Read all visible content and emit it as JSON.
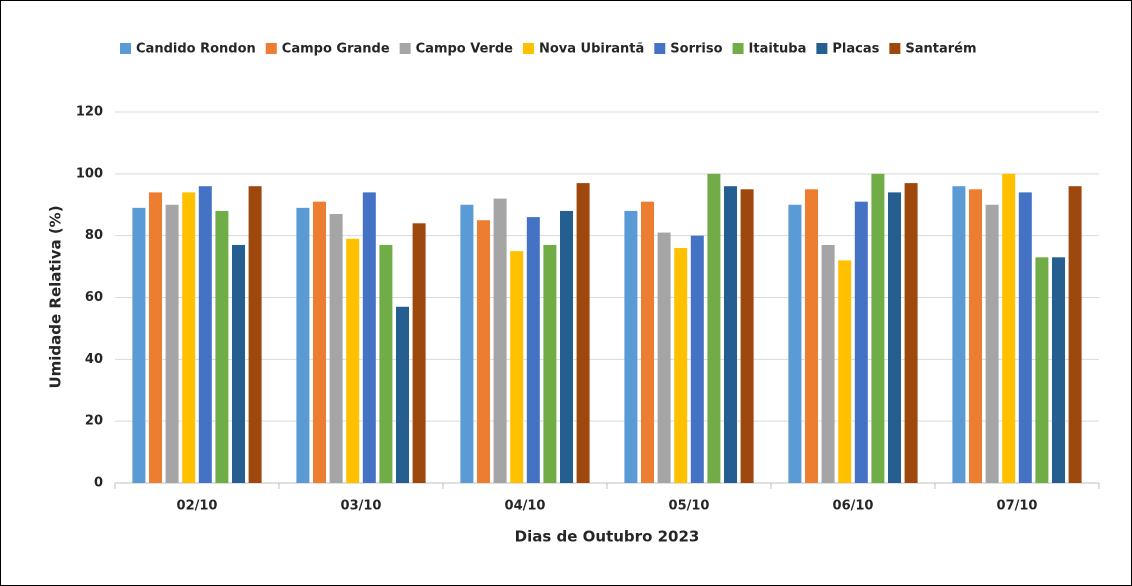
{
  "chart_data": {
    "type": "bar",
    "x_label": "Dias de Outubro 2023",
    "y_label": "Umidade Relativa (%)",
    "categories": [
      "02/10",
      "03/10",
      "04/10",
      "05/10",
      "06/10",
      "07/10"
    ],
    "series": [
      {
        "name": "Candido Rondon",
        "color": "#5b9bd5",
        "values": [
          89,
          89,
          90,
          88,
          90,
          96
        ]
      },
      {
        "name": "Campo Grande",
        "color": "#ed7d31",
        "values": [
          94,
          91,
          85,
          91,
          95,
          95
        ]
      },
      {
        "name": "Campo Verde",
        "color": "#a5a5a5",
        "values": [
          90,
          87,
          92,
          81,
          77,
          90
        ]
      },
      {
        "name": "Nova Ubirantã",
        "color": "#ffc000",
        "values": [
          94,
          79,
          75,
          76,
          72,
          100
        ]
      },
      {
        "name": "Sorriso",
        "color": "#4472c4",
        "values": [
          96,
          94,
          86,
          80,
          91,
          94
        ]
      },
      {
        "name": "Itaituba",
        "color": "#70ad47",
        "values": [
          88,
          77,
          77,
          100,
          100,
          73
        ]
      },
      {
        "name": "Placas",
        "color": "#255e91",
        "values": [
          77,
          57,
          88,
          96,
          94,
          73
        ]
      },
      {
        "name": "Santarém",
        "color": "#9e480e",
        "values": [
          96,
          84,
          97,
          95,
          97,
          96
        ]
      }
    ],
    "ylim": [
      0,
      120
    ],
    "yticks": [
      0,
      20,
      40,
      60,
      80,
      100,
      120
    ],
    "grid": true,
    "legend": "top"
  }
}
